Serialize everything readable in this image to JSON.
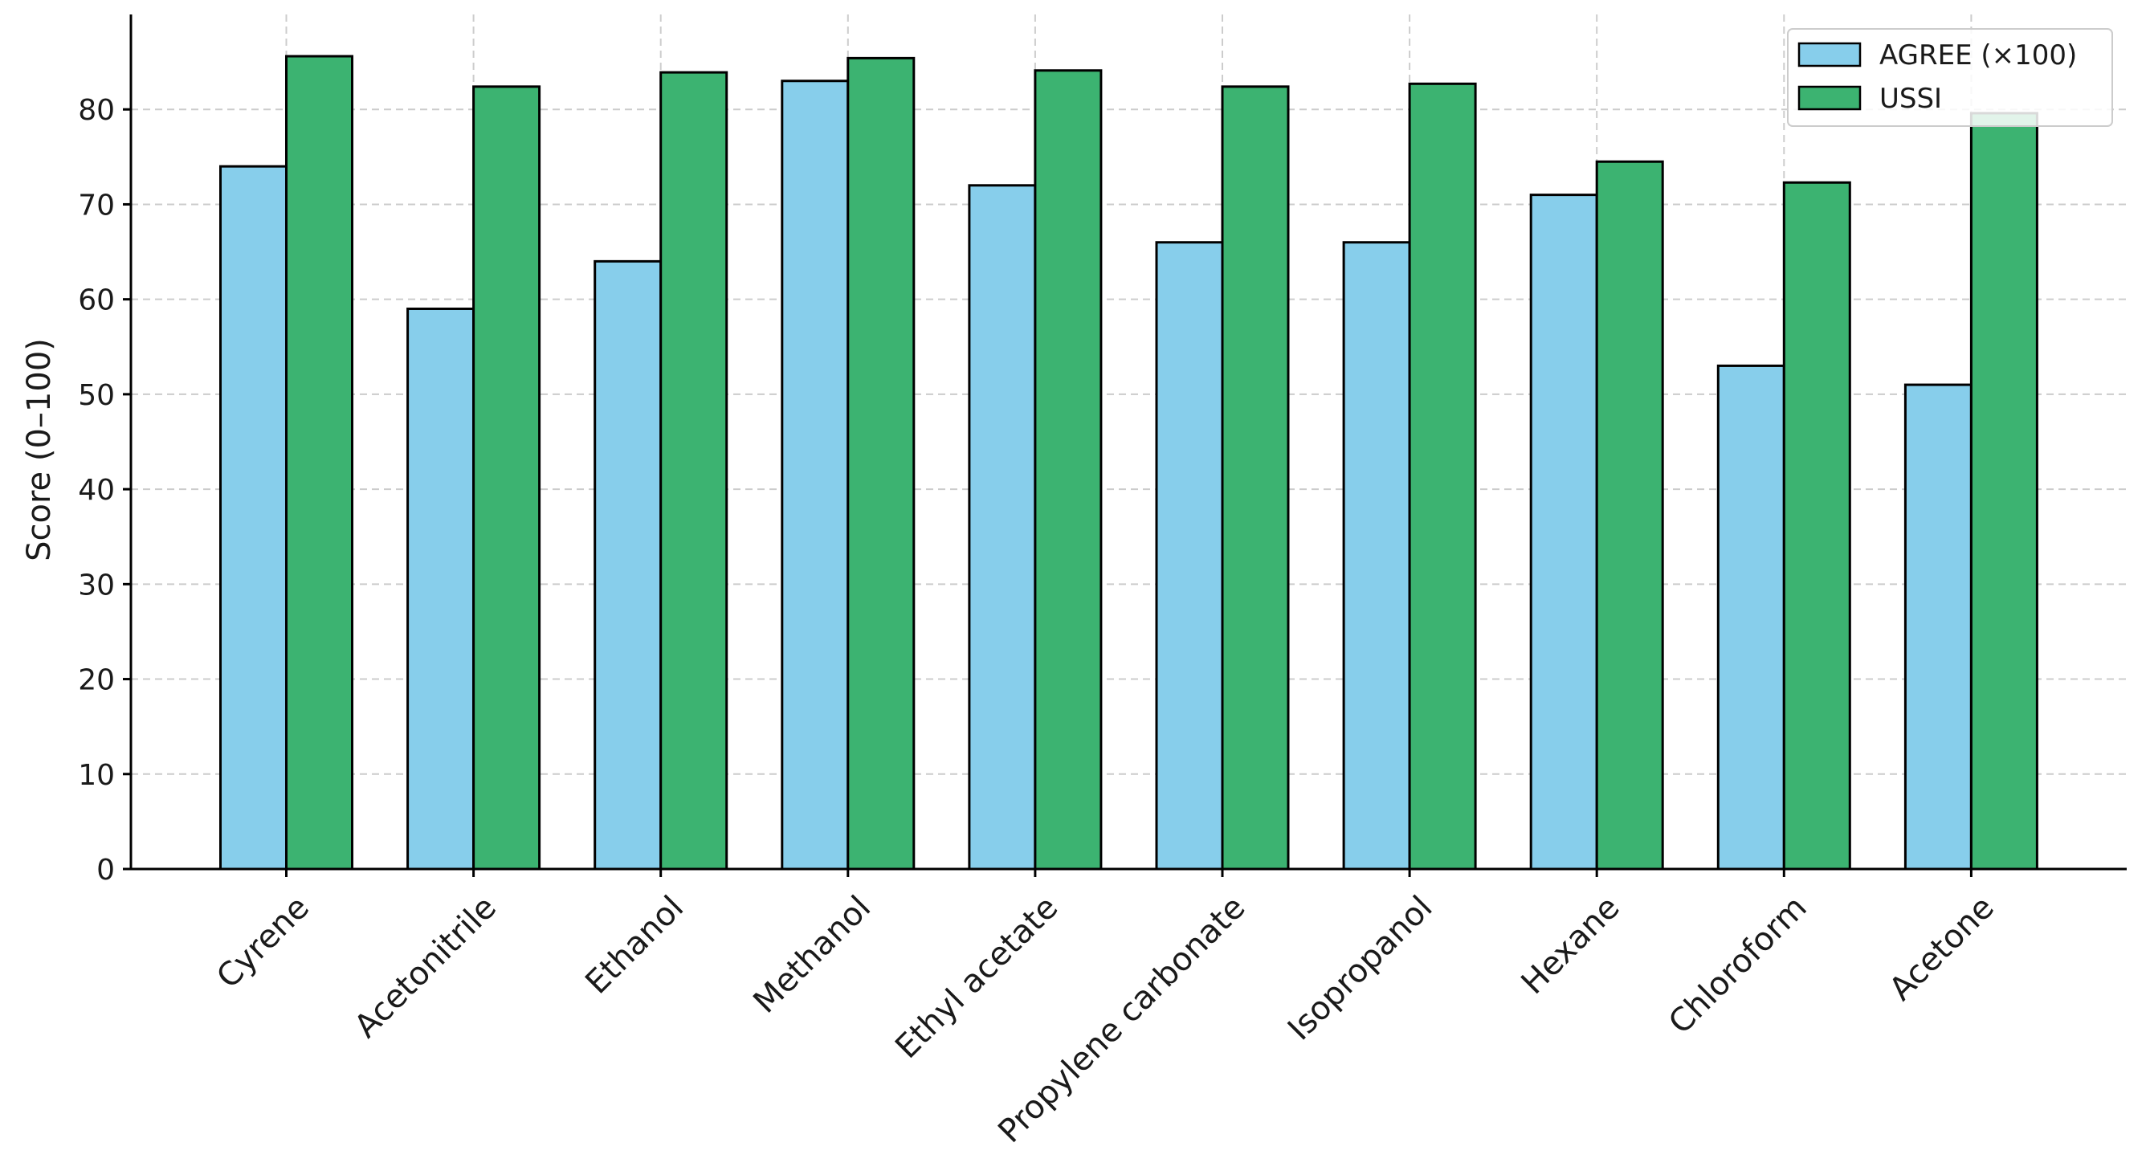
{
  "chart_data": {
    "type": "bar",
    "title": "",
    "xlabel": "",
    "ylabel": "Score (0–100)",
    "ylim": [
      0,
      90
    ],
    "yticks": [
      0,
      10,
      20,
      30,
      40,
      50,
      60,
      70,
      80
    ],
    "grid": true,
    "legend_position": "top-right",
    "categories": [
      "Cyrene",
      "Acetonitrile",
      "Ethanol",
      "Methanol",
      "Ethyl acetate",
      "Propylene carbonate",
      "Isopropanol",
      "Hexane",
      "Chloroform",
      "Acetone"
    ],
    "series": [
      {
        "name": "AGREE (×100)",
        "color": "#87ceeb",
        "values": [
          74,
          59,
          64,
          83,
          72,
          66,
          66,
          71,
          53,
          51
        ]
      },
      {
        "name": "USSI",
        "color": "#3cb371",
        "values": [
          85.6,
          82.4,
          83.9,
          85.4,
          84.1,
          82.4,
          82.7,
          74.5,
          72.3,
          79.6
        ]
      }
    ]
  }
}
